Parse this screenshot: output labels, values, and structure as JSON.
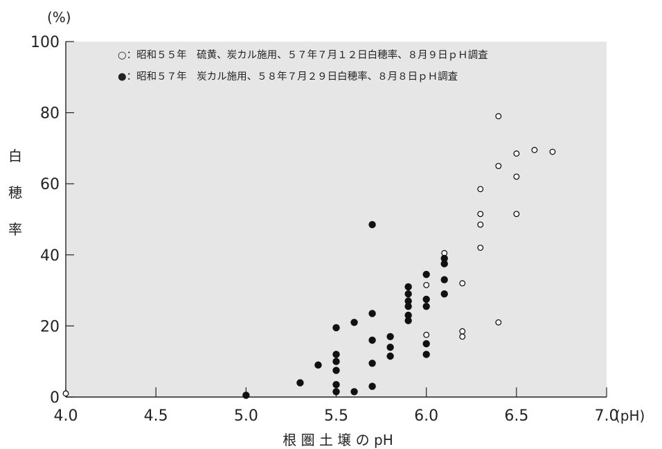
{
  "chart_data": {
    "type": "scatter",
    "xlabel": "根 圏 土 壌 の pH",
    "x_unit": "(pH)",
    "ylabel": "白穂率",
    "y_unit": "(%)",
    "xlim": [
      4.0,
      7.0
    ],
    "ylim": [
      0,
      100
    ],
    "xticks": [
      "4.0",
      "4.5",
      "5.0",
      "5.5",
      "6.0",
      "6.5",
      "7.0"
    ],
    "yticks": [
      "0",
      "20",
      "40",
      "60",
      "80",
      "100"
    ],
    "grid": false,
    "legend_position": "top",
    "plot_background": "#e6e6e6",
    "series": [
      {
        "name": "○：昭和５５年　硫黄、炭カル施用、５７年７月１２日白穂率、８月９日ｐＨ調査",
        "marker": "open-circle",
        "points": [
          {
            "x": 4.0,
            "y": 1
          },
          {
            "x": 6.0,
            "y": 31.5
          },
          {
            "x": 6.0,
            "y": 17.5
          },
          {
            "x": 6.1,
            "y": 40.5
          },
          {
            "x": 6.2,
            "y": 32
          },
          {
            "x": 6.2,
            "y": 18.5
          },
          {
            "x": 6.2,
            "y": 17
          },
          {
            "x": 6.3,
            "y": 58.5
          },
          {
            "x": 6.3,
            "y": 51.5
          },
          {
            "x": 6.3,
            "y": 48.5
          },
          {
            "x": 6.3,
            "y": 42
          },
          {
            "x": 6.4,
            "y": 79
          },
          {
            "x": 6.4,
            "y": 65
          },
          {
            "x": 6.4,
            "y": 21
          },
          {
            "x": 6.5,
            "y": 68.5
          },
          {
            "x": 6.5,
            "y": 62
          },
          {
            "x": 6.5,
            "y": 51.5
          },
          {
            "x": 6.6,
            "y": 69.5
          },
          {
            "x": 6.7,
            "y": 69
          }
        ]
      },
      {
        "name": "●：昭和５７年　炭カル施用、５８年７月２９日白穂率、８月８日ｐＨ調査",
        "marker": "filled-circle",
        "points": [
          {
            "x": 5.0,
            "y": 0.5
          },
          {
            "x": 5.3,
            "y": 4
          },
          {
            "x": 5.4,
            "y": 9
          },
          {
            "x": 5.5,
            "y": 19.5
          },
          {
            "x": 5.5,
            "y": 12
          },
          {
            "x": 5.5,
            "y": 10
          },
          {
            "x": 5.5,
            "y": 7.5
          },
          {
            "x": 5.5,
            "y": 3.5
          },
          {
            "x": 5.5,
            "y": 1.5
          },
          {
            "x": 5.6,
            "y": 21
          },
          {
            "x": 5.6,
            "y": 1.5
          },
          {
            "x": 5.7,
            "y": 48.5
          },
          {
            "x": 5.7,
            "y": 23.5
          },
          {
            "x": 5.7,
            "y": 16
          },
          {
            "x": 5.7,
            "y": 9.5
          },
          {
            "x": 5.7,
            "y": 3
          },
          {
            "x": 5.8,
            "y": 17
          },
          {
            "x": 5.8,
            "y": 14
          },
          {
            "x": 5.8,
            "y": 11.5
          },
          {
            "x": 5.9,
            "y": 31
          },
          {
            "x": 5.9,
            "y": 29
          },
          {
            "x": 5.9,
            "y": 27
          },
          {
            "x": 5.9,
            "y": 25.5
          },
          {
            "x": 5.9,
            "y": 23
          },
          {
            "x": 5.9,
            "y": 21.5
          },
          {
            "x": 6.0,
            "y": 34.5
          },
          {
            "x": 6.0,
            "y": 27.5
          },
          {
            "x": 6.0,
            "y": 25.5
          },
          {
            "x": 6.0,
            "y": 15
          },
          {
            "x": 6.0,
            "y": 12
          },
          {
            "x": 6.1,
            "y": 39
          },
          {
            "x": 6.1,
            "y": 37.5
          },
          {
            "x": 6.1,
            "y": 33
          },
          {
            "x": 6.1,
            "y": 29
          }
        ]
      }
    ]
  }
}
